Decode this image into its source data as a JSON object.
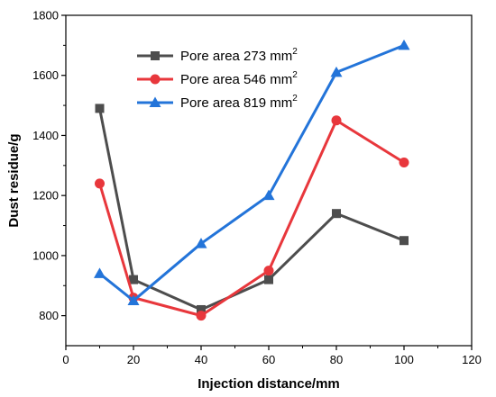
{
  "chart_data": {
    "type": "line",
    "xlabel": "Injection distance/mm",
    "ylabel": "Dust residue/g",
    "xlim": [
      0,
      120
    ],
    "ylim": [
      700,
      1800
    ],
    "x_ticks": [
      "0",
      "20",
      "40",
      "60",
      "80",
      "100",
      "120"
    ],
    "y_ticks": [
      "800",
      "1000",
      "1200",
      "1400",
      "1600",
      "1800"
    ],
    "grid": false,
    "legend_position": "top-center",
    "x": [
      10,
      20,
      40,
      60,
      80,
      100
    ],
    "series": [
      {
        "name": "Pore area 273 mm",
        "name_sup": "2",
        "color": "#4d4d4d",
        "marker": "square",
        "values": [
          1490,
          920,
          820,
          920,
          1140,
          1050
        ]
      },
      {
        "name": "Pore area 546 mm",
        "name_sup": "2",
        "color": "#e8373c",
        "marker": "circle",
        "values": [
          1240,
          860,
          800,
          950,
          1450,
          1310
        ]
      },
      {
        "name": "Pore area 819 mm",
        "name_sup": "2",
        "color": "#2374d9",
        "marker": "triangle",
        "values": [
          940,
          850,
          1040,
          1200,
          1610,
          1700
        ]
      }
    ]
  }
}
